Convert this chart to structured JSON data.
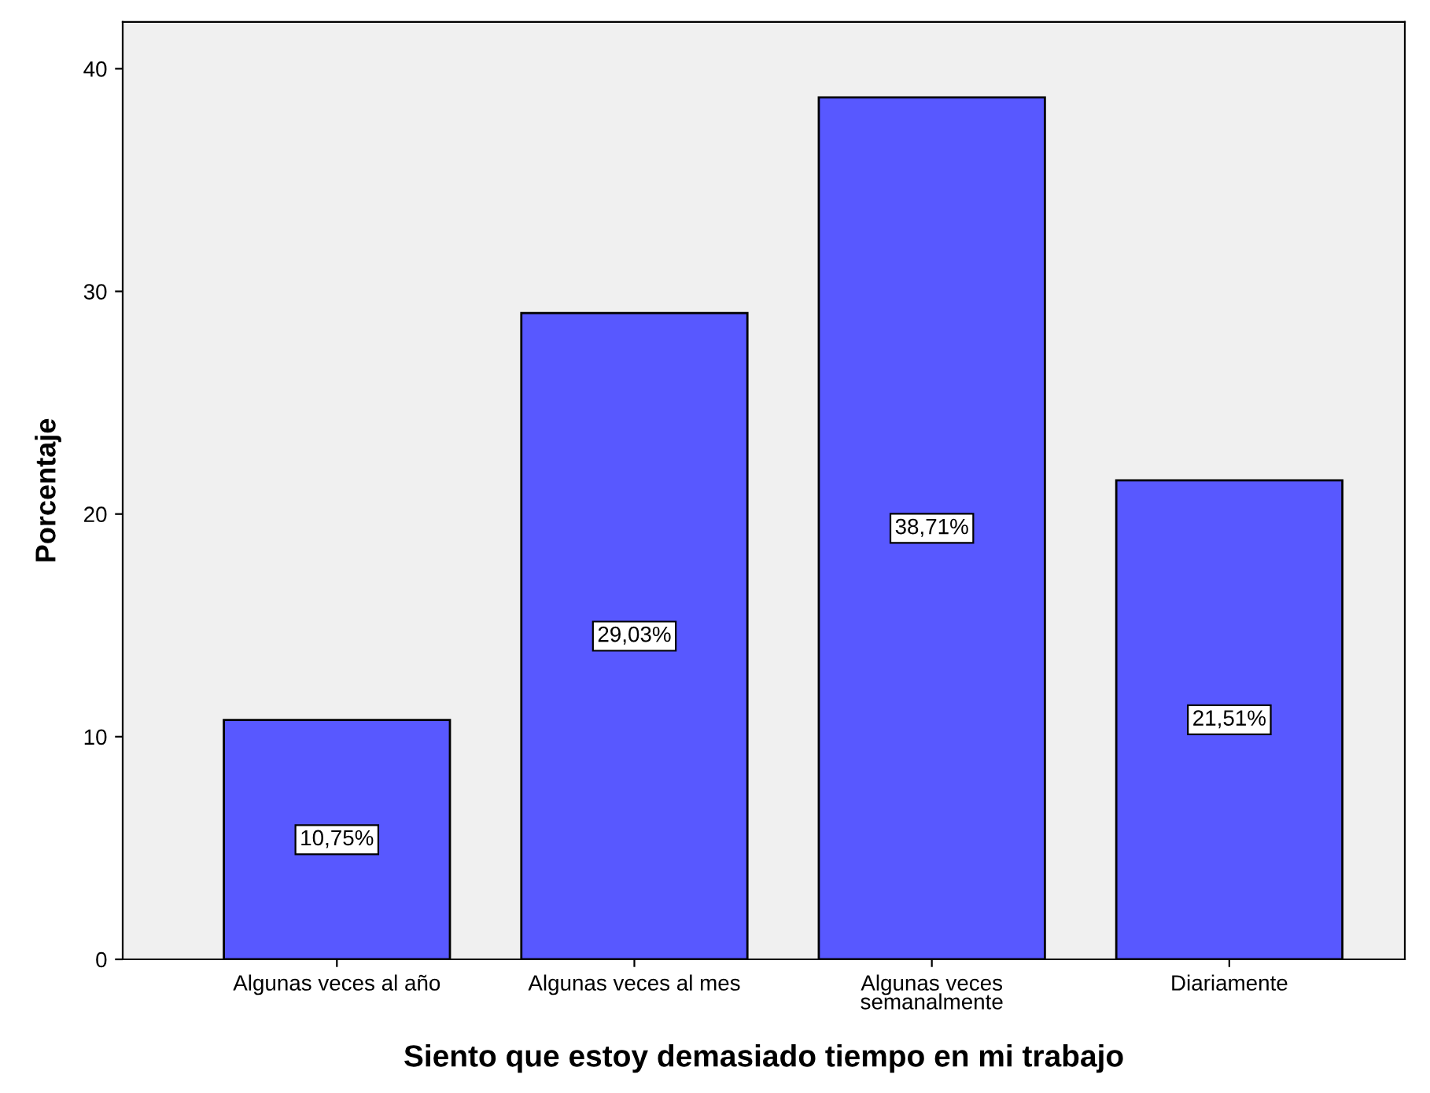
{
  "chart_data": {
    "type": "bar",
    "xlabel": "Siento que estoy demasiado tiempo en mi trabajo",
    "ylabel": "Porcentaje",
    "categories": [
      "Algunas veces al año",
      "Algunas veces al mes",
      "Algunas veces\nsemanalmente",
      "Diariamente"
    ],
    "values": [
      10.75,
      29.03,
      38.71,
      21.51
    ],
    "value_labels": [
      "10,75%",
      "29,03%",
      "38,71%",
      "21,51%"
    ],
    "color": "#5858ff",
    "ylim": [
      0,
      42.1
    ],
    "yticks": [
      0,
      10,
      20,
      30,
      40
    ],
    "grid": false,
    "legend": false
  }
}
